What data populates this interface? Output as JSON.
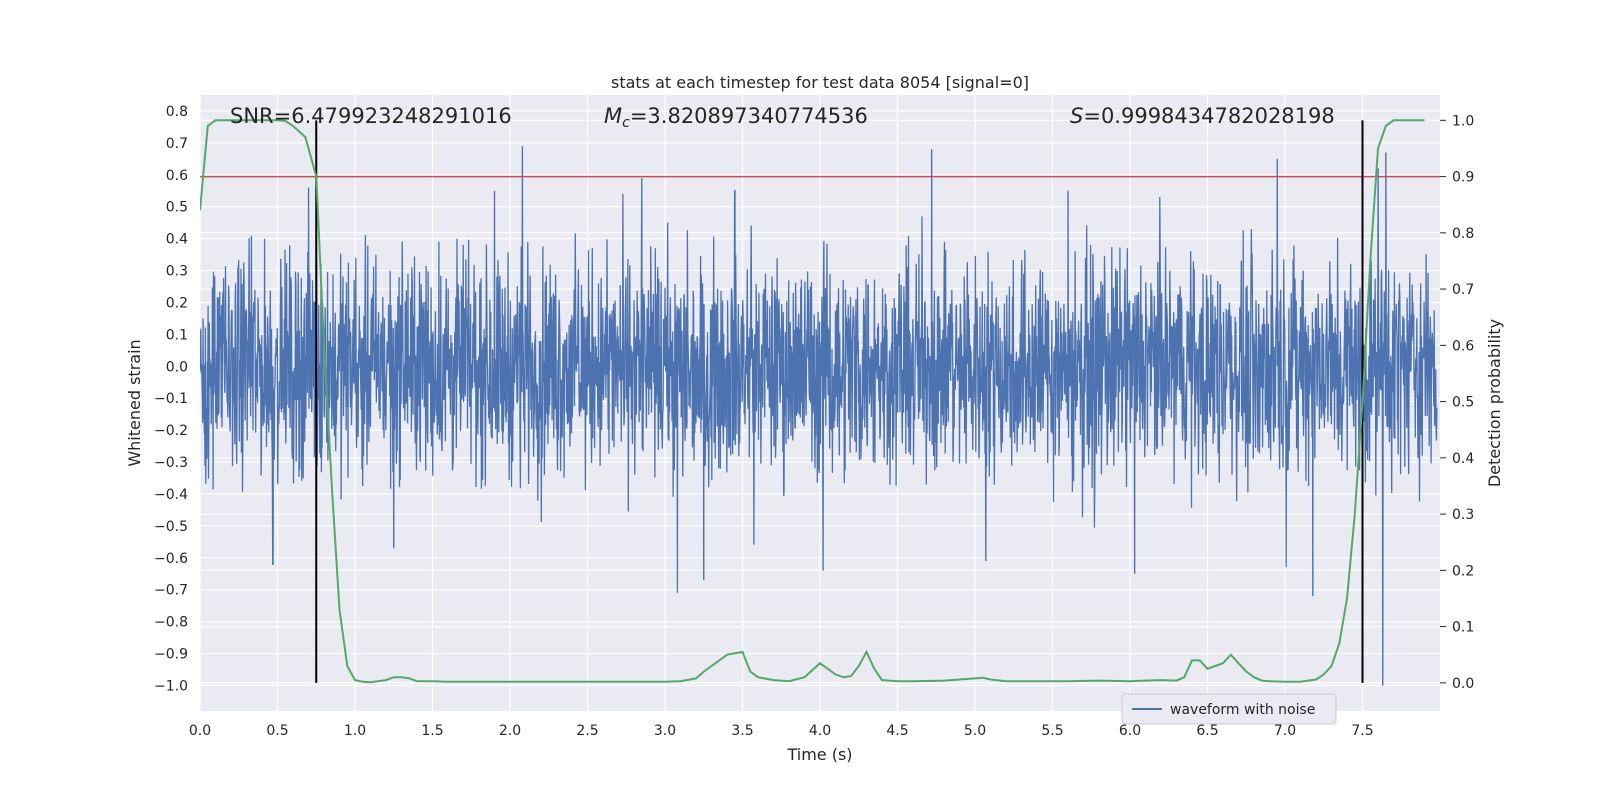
{
  "chart_data": {
    "type": "line",
    "title": "stats at each timestep for test data 8054 [signal=0]",
    "xlabel": "Time (s)",
    "ylabel": "Whitened strain",
    "y2label": "Detection probability",
    "xlim": [
      0.0,
      8.0
    ],
    "ylim": [
      -1.08,
      0.85
    ],
    "y2lim": [
      -0.05,
      1.045
    ],
    "x_ticks": [
      "0.0",
      "0.5",
      "1.0",
      "1.5",
      "2.0",
      "2.5",
      "3.0",
      "3.5",
      "4.0",
      "4.5",
      "5.0",
      "5.5",
      "6.0",
      "6.5",
      "7.0",
      "7.5"
    ],
    "y_ticks": [
      "0.8",
      "0.7",
      "0.6",
      "0.5",
      "0.4",
      "0.3",
      "0.2",
      "0.1",
      "0.0",
      "-0.1",
      "-0.2",
      "-0.3",
      "-0.4",
      "-0.5",
      "-0.6",
      "-0.7",
      "-0.8",
      "-0.9",
      "-1.0"
    ],
    "y2_ticks": [
      "1.0",
      "0.9",
      "0.8",
      "0.7",
      "0.6",
      "0.5",
      "0.4",
      "0.3",
      "0.2",
      "0.1",
      "0.0"
    ],
    "annotations": {
      "snr": "SNR=6.479923248291016",
      "mc_symbol": "M",
      "mc_sub": "c",
      "mc_value": "=3.820897340774536",
      "s_symbol": "S",
      "s_value": "=0.9998434782028198"
    },
    "threshold": {
      "y2": 0.9,
      "color": "#c44e52"
    },
    "vlines": [
      {
        "x": 0.75,
        "color": "#000000"
      },
      {
        "x": 7.5,
        "color": "#000000"
      }
    ],
    "series": [
      {
        "name": "waveform with noise",
        "axis": "left",
        "color": "#4c72b0",
        "kind": "noise",
        "envelope": 0.3,
        "peaks": [
          {
            "x": 0.47,
            "y": -0.62
          },
          {
            "x": 0.7,
            "y": 0.56
          },
          {
            "x": 0.75,
            "y": -0.58
          },
          {
            "x": 1.25,
            "y": -0.57
          },
          {
            "x": 2.08,
            "y": 0.69
          },
          {
            "x": 2.85,
            "y": 0.59
          },
          {
            "x": 3.08,
            "y": -0.71
          },
          {
            "x": 3.25,
            "y": -0.67
          },
          {
            "x": 4.02,
            "y": -0.64
          },
          {
            "x": 4.72,
            "y": 0.68
          },
          {
            "x": 5.07,
            "y": -0.61
          },
          {
            "x": 6.03,
            "y": -0.65
          },
          {
            "x": 6.95,
            "y": 0.65
          },
          {
            "x": 7.18,
            "y": -0.72
          },
          {
            "x": 7.63,
            "y": -1.0
          },
          {
            "x": 7.65,
            "y": 0.67
          },
          {
            "x": 7.6,
            "y": 0.62
          },
          {
            "x": 3.45,
            "y": 0.55
          },
          {
            "x": 1.9,
            "y": 0.55
          },
          {
            "x": 5.6,
            "y": 0.55
          }
        ]
      },
      {
        "name": "",
        "axis": "right",
        "color": "#55a868",
        "x": [
          0.0,
          0.05,
          0.1,
          0.15,
          0.2,
          0.3,
          0.4,
          0.5,
          0.55,
          0.6,
          0.68,
          0.75,
          0.8,
          0.85,
          0.9,
          0.95,
          1.0,
          1.05,
          1.1,
          1.2,
          1.25,
          1.3,
          1.35,
          1.4,
          1.5,
          1.6,
          1.8,
          2.0,
          2.2,
          2.4,
          2.6,
          2.8,
          3.0,
          3.1,
          3.2,
          3.25,
          3.3,
          3.35,
          3.4,
          3.5,
          3.55,
          3.6,
          3.7,
          3.8,
          3.9,
          4.0,
          4.05,
          4.1,
          4.15,
          4.2,
          4.25,
          4.3,
          4.35,
          4.4,
          4.5,
          4.6,
          4.8,
          4.9,
          5.0,
          5.05,
          5.1,
          5.2,
          5.4,
          5.6,
          5.8,
          6.0,
          6.1,
          6.2,
          6.3,
          6.35,
          6.4,
          6.45,
          6.5,
          6.55,
          6.6,
          6.65,
          6.7,
          6.75,
          6.8,
          6.85,
          6.9,
          7.0,
          7.1,
          7.2,
          7.25,
          7.3,
          7.35,
          7.4,
          7.45,
          7.5,
          7.55,
          7.6,
          7.65,
          7.7,
          7.75,
          7.8,
          7.9
        ],
        "values": [
          0.84,
          0.99,
          1.0,
          1.0,
          1.0,
          1.0,
          1.0,
          1.0,
          0.999,
          0.99,
          0.97,
          0.9,
          0.6,
          0.35,
          0.13,
          0.03,
          0.005,
          0.002,
          0.001,
          0.005,
          0.01,
          0.01,
          0.008,
          0.003,
          0.003,
          0.002,
          0.002,
          0.002,
          0.002,
          0.002,
          0.002,
          0.002,
          0.002,
          0.003,
          0.008,
          0.02,
          0.03,
          0.04,
          0.05,
          0.055,
          0.02,
          0.01,
          0.005,
          0.003,
          0.01,
          0.035,
          0.025,
          0.015,
          0.01,
          0.012,
          0.03,
          0.055,
          0.025,
          0.005,
          0.003,
          0.003,
          0.004,
          0.006,
          0.008,
          0.009,
          0.006,
          0.003,
          0.003,
          0.003,
          0.004,
          0.003,
          0.004,
          0.005,
          0.004,
          0.01,
          0.04,
          0.04,
          0.025,
          0.03,
          0.035,
          0.05,
          0.035,
          0.02,
          0.01,
          0.004,
          0.003,
          0.002,
          0.002,
          0.006,
          0.015,
          0.03,
          0.07,
          0.15,
          0.3,
          0.5,
          0.75,
          0.95,
          0.99,
          1.0,
          1.0,
          1.0,
          1.0
        ]
      }
    ],
    "legend": {
      "label": "waveform with noise",
      "placement": "lower-right"
    },
    "grid": true,
    "colors": {
      "background": "#eaeaf2",
      "grid": "#ffffff"
    }
  }
}
